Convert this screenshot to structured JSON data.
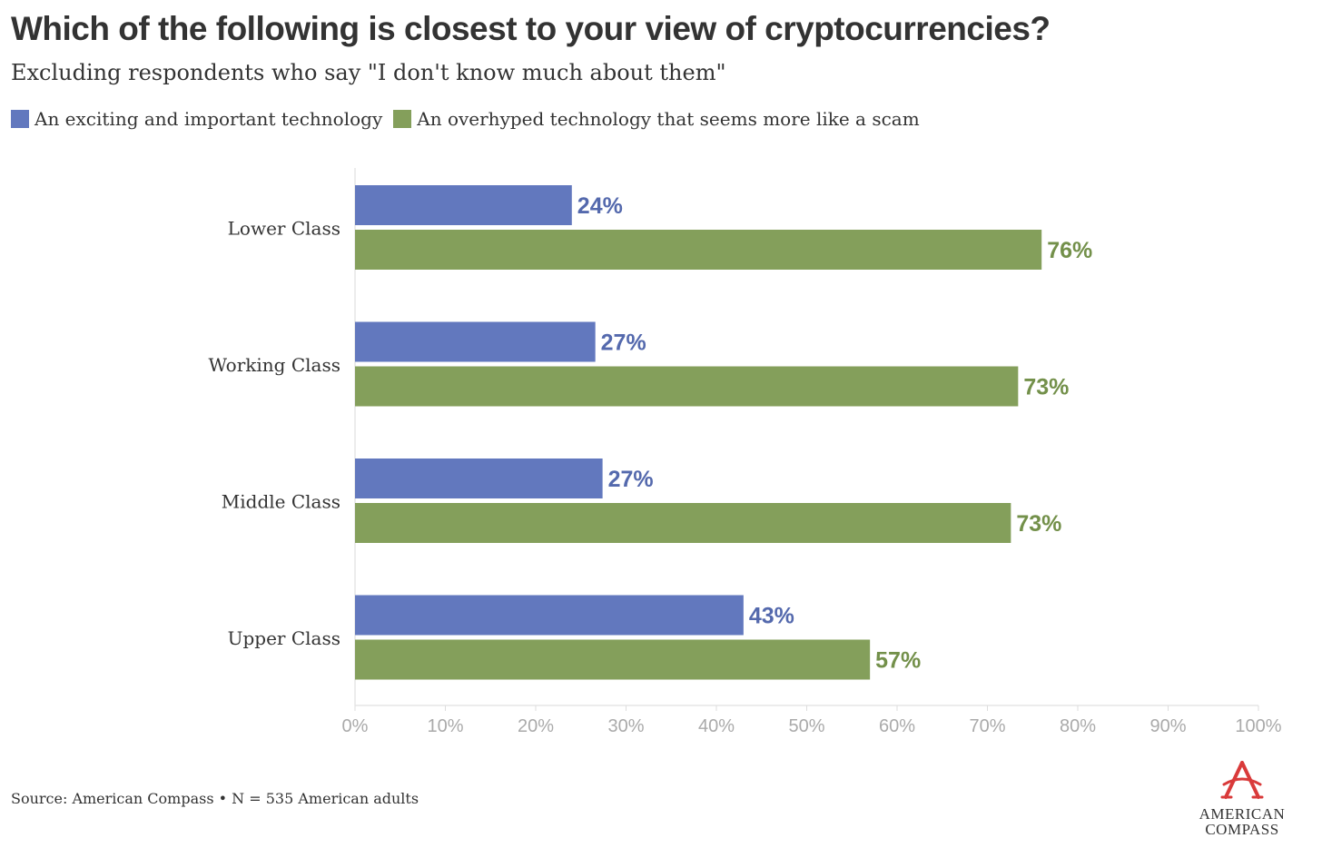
{
  "colors": {
    "series1": "#6278be",
    "series2": "#849f5b",
    "series1_label": "#5469ad",
    "series2_label": "#73904a",
    "text": "#333333",
    "axis_text": "#aaaaaa",
    "logo_red": "#d93a3a"
  },
  "chart_data": {
    "type": "bar",
    "orientation": "horizontal",
    "title": "Which of the following is closest to your view of cryptocurrencies?",
    "subtitle": "Excluding respondents who say \"I don't know much about them\"",
    "categories": [
      "Lower Class",
      "Working Class",
      "Middle Class",
      "Upper Class"
    ],
    "series": [
      {
        "name": "An exciting and important technology",
        "values": [
          24,
          26.6,
          27.4,
          43
        ],
        "labels": [
          "24%",
          "27%",
          "27%",
          "43%"
        ]
      },
      {
        "name": "An overhyped technology that seems more like a scam",
        "values": [
          76,
          73.4,
          72.6,
          57
        ],
        "labels": [
          "76%",
          "73%",
          "73%",
          "57%"
        ]
      }
    ],
    "xlim": [
      0,
      100
    ],
    "xticks": [
      0,
      10,
      20,
      30,
      40,
      50,
      60,
      70,
      80,
      90,
      100
    ],
    "xtick_labels": [
      "0%",
      "10%",
      "20%",
      "30%",
      "40%",
      "50%",
      "60%",
      "70%",
      "80%",
      "90%",
      "100%"
    ],
    "legend_position": "top-left"
  },
  "footer": {
    "source": "Source: American Compass • N = 535 American adults"
  },
  "logo": {
    "line1": "AMERICAN",
    "line2": "COMPASS",
    "icon": "compass-a-icon"
  }
}
